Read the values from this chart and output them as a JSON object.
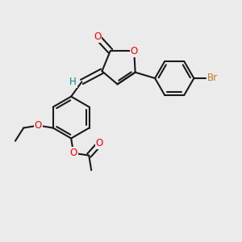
{
  "background_color": "#ebebeb",
  "bond_color": "#1a1a1a",
  "bond_width": 1.5,
  "atom_colors": {
    "O": "#ff0000",
    "Br": "#cc7722",
    "H": "#008888",
    "C": "#1a1a1a"
  },
  "fontsize": 8.5
}
